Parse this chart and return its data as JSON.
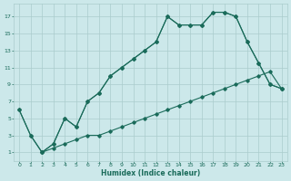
{
  "xlabel": "Humidex (Indice chaleur)",
  "bg_color": "#cce8ea",
  "grid_color": "#aacccc",
  "line_color": "#1a6b5a",
  "xlim": [
    -0.5,
    23.5
  ],
  "ylim": [
    0,
    18.5
  ],
  "xticks": [
    0,
    1,
    2,
    3,
    4,
    5,
    6,
    7,
    8,
    9,
    10,
    11,
    12,
    13,
    14,
    15,
    16,
    17,
    18,
    19,
    20,
    21,
    22,
    23
  ],
  "yticks": [
    1,
    3,
    5,
    7,
    9,
    11,
    13,
    15,
    17
  ],
  "line1_x": [
    0,
    1,
    2,
    3,
    4,
    5,
    6,
    7,
    8,
    9,
    10,
    11,
    12,
    13,
    14,
    15,
    16,
    17,
    18,
    19,
    20,
    21,
    22,
    23
  ],
  "line1_y": [
    6,
    3,
    1,
    2,
    5,
    4,
    7,
    8,
    10,
    11,
    12,
    13,
    14,
    17,
    16,
    16,
    16,
    17.5,
    17.5,
    17,
    14,
    11.5,
    9,
    8.5
  ],
  "line2_x": [
    0,
    1,
    2,
    3,
    4,
    5,
    6,
    7,
    8,
    9,
    10,
    11,
    12,
    13,
    14,
    15,
    16,
    17,
    18,
    19,
    20,
    21,
    22,
    23
  ],
  "line2_y": [
    6,
    3,
    1,
    1.5,
    2,
    2.5,
    3,
    3,
    3.5,
    4,
    4.5,
    5,
    5.5,
    6,
    6.5,
    7,
    7.5,
    8,
    8.5,
    9,
    9.5,
    10,
    10.5,
    8.5
  ],
  "line3_x": [
    2,
    3,
    4,
    5,
    6,
    7,
    8,
    9,
    10,
    11,
    12,
    13,
    14,
    15,
    16,
    17,
    18,
    19,
    20,
    21,
    22,
    23
  ],
  "line3_y": [
    1,
    2,
    5,
    4,
    7,
    8,
    10,
    11,
    12,
    13,
    14,
    17,
    16,
    16,
    16,
    17.5,
    17.5,
    17,
    14,
    11.5,
    9,
    8.5
  ]
}
